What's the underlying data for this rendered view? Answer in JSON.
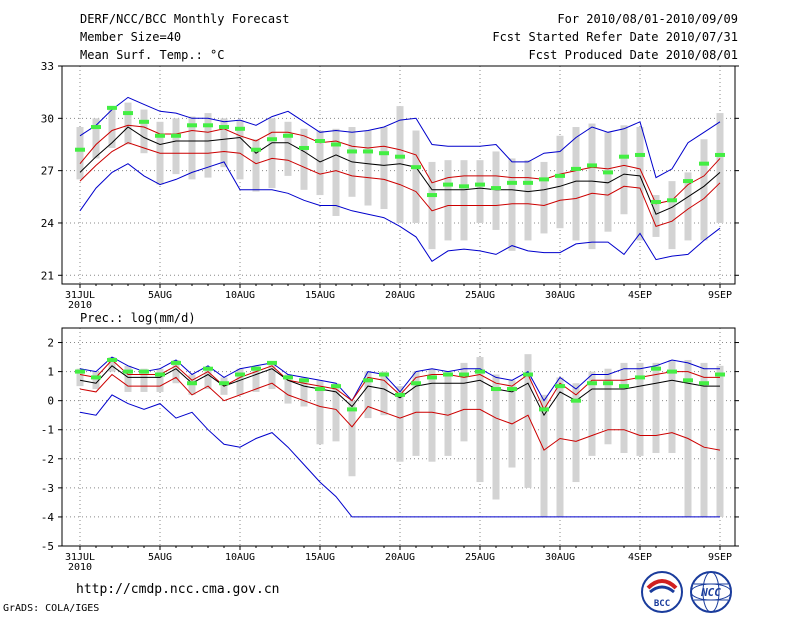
{
  "header": {
    "title": "DERF/NCC/BCC Monthly Forecast",
    "member": "Member Size=40",
    "variable": "Mean Surf. Temp.: °C",
    "period": "For 2010/08/01-2010/09/09",
    "started": "Fcst Started Refer Date 2010/07/31",
    "produced": "Fcst Produced Date 2010/08/01"
  },
  "footer": {
    "url": "http://cmdp.ncc.cma.gov.cn",
    "grads": "GrADS: COLA/IGES",
    "bcc_logo": "BCC",
    "ncc_logo": "NCC"
  },
  "colors": {
    "ensemble_mean": "#000000",
    "std_band": "#cc0000",
    "extremes": "#0000cc",
    "member_bar": "#d3d3d3",
    "obs_marker": "#44ee44",
    "grid": "#888888"
  },
  "chart_data": [
    {
      "type": "line",
      "title": "Mean Surf. Temp.: °C",
      "x_tick_labels": [
        "31JUL\n2010",
        "5AUG",
        "10AUG",
        "15AUG",
        "20AUG",
        "25AUG",
        "30AUG",
        "4SEP",
        "9SEP"
      ],
      "x_tick_days": [
        0,
        5,
        10,
        15,
        20,
        25,
        30,
        35,
        40
      ],
      "ylim": [
        20.5,
        33
      ],
      "y_ticks": [
        21,
        24,
        27,
        30,
        33
      ],
      "series": [
        {
          "name": "max",
          "color": "#0000cc",
          "values": [
            24.7,
            26.0,
            26.9,
            27.4,
            26.7,
            26.2,
            26.5,
            26.9,
            27.2,
            27.5,
            25.9,
            25.9,
            25.9,
            25.7,
            25.3,
            25.0,
            25.0,
            24.7,
            24.5,
            24.3,
            23.8,
            23.2,
            21.8,
            22.4,
            22.5,
            22.4,
            22.2,
            22.7,
            22.4,
            22.3,
            22.3,
            22.8,
            22.9,
            22.9,
            22.2,
            23.4,
            21.9,
            22.1,
            22.2,
            23.0,
            23.7
          ]
        },
        {
          "name": "min",
          "color": "#0000cc",
          "values": [
            29.0,
            29.6,
            30.5,
            31.2,
            30.8,
            30.4,
            30.3,
            30.0,
            30.0,
            29.8,
            29.9,
            29.6,
            30.1,
            30.4,
            29.8,
            29.2,
            29.3,
            29.2,
            29.3,
            29.5,
            29.9,
            30.0,
            28.5,
            28.4,
            28.4,
            28.4,
            28.5,
            27.5,
            27.5,
            28.0,
            28.1,
            28.9,
            29.5,
            29.2,
            29.4,
            29.8,
            26.6,
            27.1,
            28.6,
            29.2,
            29.8
          ]
        },
        {
          "name": "mean+std",
          "color": "#cc0000",
          "values": [
            27.4,
            28.5,
            29.3,
            29.6,
            29.5,
            29.1,
            29.1,
            29.3,
            29.2,
            29.4,
            29.0,
            28.7,
            29.2,
            29.2,
            29.0,
            28.6,
            28.7,
            28.4,
            28.3,
            28.4,
            28.2,
            27.9,
            26.3,
            26.6,
            26.7,
            26.7,
            26.7,
            26.6,
            26.6,
            26.5,
            26.8,
            27.0,
            27.2,
            27.1,
            27.3,
            27.1,
            25.1,
            25.3,
            26.2,
            26.7,
            27.7
          ]
        },
        {
          "name": "mean",
          "color": "#000000",
          "values": [
            26.9,
            27.8,
            28.6,
            29.5,
            28.9,
            28.5,
            28.7,
            28.7,
            28.7,
            28.8,
            28.9,
            28.0,
            28.6,
            28.6,
            28.1,
            27.5,
            27.9,
            27.5,
            27.4,
            27.3,
            27.4,
            27.2,
            25.9,
            25.9,
            25.9,
            26.0,
            25.9,
            25.9,
            25.8,
            25.9,
            26.1,
            26.4,
            26.4,
            26.3,
            26.8,
            26.7,
            24.5,
            24.9,
            25.5,
            26.1,
            26.9
          ]
        },
        {
          "name": "mean-std",
          "color": "#cc0000",
          "values": [
            26.4,
            27.3,
            28.1,
            28.6,
            28.3,
            28.0,
            28.0,
            28.0,
            28.0,
            28.1,
            28.0,
            27.4,
            27.7,
            27.6,
            27.2,
            26.8,
            27.0,
            26.7,
            26.6,
            26.5,
            26.2,
            25.8,
            24.7,
            25.0,
            25.0,
            25.0,
            25.0,
            25.1,
            25.1,
            25.0,
            25.3,
            25.4,
            25.7,
            25.6,
            26.1,
            26.0,
            23.8,
            24.1,
            24.8,
            25.4,
            26.3
          ]
        }
      ],
      "bars": {
        "low": [
          26.5,
          27.7,
          28.3,
          28.5,
          28.0,
          26.2,
          26.8,
          26.5,
          26.6,
          27.2,
          26.5,
          25.8,
          26.0,
          26.7,
          25.9,
          25.6,
          24.4,
          25.5,
          25.0,
          24.8,
          24.0,
          24.0,
          22.5,
          23.0,
          23.0,
          24.0,
          23.6,
          22.4,
          23.0,
          23.4,
          23.7,
          23.0,
          22.5,
          23.5,
          24.5,
          23.0,
          23.2,
          22.5,
          23.0,
          23.0,
          24.0
        ],
        "high": [
          29.5,
          30.0,
          30.7,
          30.9,
          30.5,
          29.8,
          30.0,
          30.1,
          30.3,
          30.0,
          29.9,
          28.8,
          30.0,
          29.8,
          29.4,
          29.3,
          29.4,
          29.5,
          29.3,
          29.5,
          30.7,
          29.3,
          27.5,
          27.6,
          27.6,
          27.6,
          28.1,
          27.7,
          27.6,
          27.5,
          29.0,
          29.5,
          29.7,
          29.2,
          29.6,
          29.5,
          25.6,
          26.4,
          26.9,
          28.8,
          30.3
        ]
      },
      "observations": [
        28.2,
        29.5,
        30.6,
        30.3,
        29.8,
        29.0,
        29.0,
        29.6,
        29.6,
        29.5,
        29.4,
        28.2,
        28.8,
        29.0,
        28.3,
        28.7,
        28.5,
        28.1,
        28.1,
        28.0,
        27.8,
        27.2,
        25.6,
        26.2,
        26.1,
        26.2,
        26.0,
        26.3,
        26.3,
        26.5,
        26.7,
        27.1,
        27.3,
        26.9,
        27.8,
        27.9,
        25.2,
        25.3,
        26.4,
        27.4,
        27.9
      ]
    },
    {
      "type": "line",
      "title": "Prec.: log(mm/d)",
      "x_tick_labels": [
        "31JUL\n2010",
        "5AUG",
        "10AUG",
        "15AUG",
        "20AUG",
        "25AUG",
        "30AUG",
        "4SEP",
        "9SEP"
      ],
      "x_tick_days": [
        0,
        5,
        10,
        15,
        20,
        25,
        30,
        35,
        40
      ],
      "ylim": [
        -5,
        2.5
      ],
      "y_ticks": [
        -5,
        -4,
        -3,
        -2,
        -1,
        0,
        1,
        2
      ],
      "series": [
        {
          "name": "max",
          "color": "#0000cc",
          "values": [
            1.1,
            1.0,
            1.5,
            1.2,
            1.0,
            1.1,
            1.4,
            0.9,
            1.2,
            0.8,
            1.1,
            1.2,
            1.3,
            0.9,
            0.8,
            0.7,
            0.6,
            0.0,
            1.0,
            0.9,
            0.3,
            1.0,
            1.1,
            1.0,
            1.1,
            1.1,
            0.8,
            0.7,
            1.0,
            0.0,
            0.8,
            0.4,
            0.9,
            0.9,
            1.1,
            1.1,
            1.2,
            1.4,
            1.3,
            1.1,
            1.1
          ]
        },
        {
          "name": "min",
          "color": "#0000cc",
          "values": [
            -0.4,
            -0.5,
            0.2,
            -0.1,
            -0.3,
            -0.1,
            -0.6,
            -0.4,
            -1.0,
            -1.5,
            -1.6,
            -1.3,
            -1.1,
            -1.6,
            -2.2,
            -2.8,
            -3.3,
            -4.0,
            -4.0,
            -4.0,
            -4.0,
            -4.0,
            -4.0,
            -4.0,
            -4.0,
            -4.0,
            -4.0,
            -4.0,
            -4.0,
            -4.0,
            -4.0,
            -4.0,
            -4.0,
            -4.0,
            -4.0,
            -4.0,
            -4.0,
            -4.0,
            -4.0,
            -4.0,
            -4.0
          ]
        },
        {
          "name": "mean+std",
          "color": "#cc0000",
          "values": [
            0.9,
            0.8,
            1.4,
            0.9,
            0.9,
            0.9,
            1.2,
            0.7,
            1.0,
            0.5,
            0.8,
            1.0,
            1.2,
            0.7,
            0.6,
            0.5,
            0.4,
            0.0,
            0.8,
            0.7,
            0.2,
            0.8,
            0.9,
            0.9,
            0.8,
            0.9,
            0.6,
            0.5,
            0.9,
            -0.3,
            0.6,
            0.2,
            0.7,
            0.7,
            0.7,
            0.8,
            0.9,
            1.0,
            1.0,
            0.8,
            0.8
          ]
        },
        {
          "name": "mean",
          "color": "#000000",
          "values": [
            0.7,
            0.6,
            1.2,
            0.8,
            0.8,
            0.8,
            1.1,
            0.6,
            0.9,
            0.5,
            0.7,
            0.9,
            1.1,
            0.7,
            0.5,
            0.4,
            0.3,
            -0.2,
            0.5,
            0.4,
            0.1,
            0.5,
            0.6,
            0.6,
            0.6,
            0.7,
            0.4,
            0.3,
            0.6,
            -0.5,
            0.3,
            0.0,
            0.4,
            0.4,
            0.4,
            0.5,
            0.6,
            0.7,
            0.6,
            0.5,
            0.5
          ]
        },
        {
          "name": "mean-std",
          "color": "#cc0000",
          "values": [
            0.4,
            0.3,
            0.9,
            0.5,
            0.5,
            0.5,
            0.8,
            0.2,
            0.5,
            0.0,
            0.2,
            0.4,
            0.6,
            0.2,
            0.0,
            -0.2,
            -0.3,
            -0.9,
            -0.2,
            -0.4,
            -0.6,
            -0.4,
            -0.4,
            -0.5,
            -0.3,
            -0.3,
            -0.6,
            -0.8,
            -0.5,
            -1.7,
            -1.3,
            -1.4,
            -1.2,
            -1.0,
            -1.0,
            -1.2,
            -1.2,
            -1.1,
            -1.3,
            -1.6,
            -1.7
          ]
        }
      ],
      "bars": {
        "low": [
          0.5,
          0.4,
          1.0,
          0.3,
          0.3,
          0.3,
          0.6,
          0.2,
          0.4,
          0.2,
          0.2,
          0.3,
          0.4,
          -0.1,
          -0.2,
          -1.5,
          -1.4,
          -2.6,
          -0.6,
          -0.5,
          -2.1,
          -1.9,
          -2.1,
          -1.9,
          -1.4,
          -2.8,
          -3.4,
          -2.3,
          -3.0,
          -4.0,
          -4.0,
          -2.8,
          -1.9,
          -1.5,
          -1.8,
          -1.9,
          -1.8,
          -1.8,
          -4.0,
          -4.0,
          -4.0
        ],
        "high": [
          1.1,
          1.0,
          1.5,
          1.2,
          1.1,
          1.1,
          1.4,
          0.9,
          1.1,
          0.8,
          1.1,
          1.2,
          1.3,
          0.9,
          0.8,
          0.7,
          0.6,
          0.0,
          1.0,
          1.0,
          0.5,
          1.0,
          1.1,
          1.0,
          1.3,
          1.5,
          0.9,
          0.7,
          1.6,
          0.2,
          0.8,
          0.6,
          1.0,
          1.1,
          1.3,
          1.3,
          1.3,
          1.4,
          1.4,
          1.3,
          1.2
        ]
      },
      "observations": [
        1.0,
        0.8,
        1.4,
        1.0,
        1.0,
        0.9,
        1.3,
        0.6,
        1.1,
        0.6,
        0.9,
        1.1,
        1.3,
        0.8,
        0.7,
        0.4,
        0.5,
        -0.3,
        0.7,
        0.9,
        0.2,
        0.6,
        0.8,
        0.9,
        0.9,
        1.0,
        0.4,
        0.4,
        0.9,
        -0.3,
        0.5,
        0.0,
        0.6,
        0.6,
        0.5,
        0.8,
        1.1,
        1.0,
        0.7,
        0.6,
        0.9
      ]
    }
  ]
}
